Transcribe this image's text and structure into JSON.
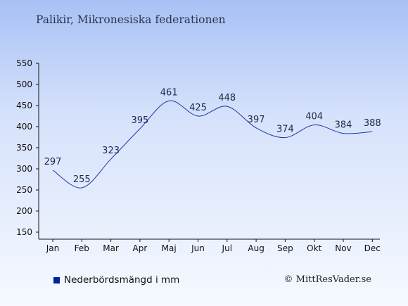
{
  "chart_data": {
    "type": "line",
    "title": "Palikir, Mikronesiska federationen",
    "categories": [
      "Jan",
      "Feb",
      "Mar",
      "Apr",
      "Maj",
      "Jun",
      "Jul",
      "Aug",
      "Sep",
      "Okt",
      "Nov",
      "Dec"
    ],
    "series": [
      {
        "name": "Nederbördsmängd i mm",
        "values": [
          297,
          255,
          323,
          395,
          461,
          425,
          448,
          397,
          374,
          404,
          384,
          388
        ],
        "color": "#2233aa"
      }
    ],
    "y_ticks": [
      150,
      200,
      250,
      300,
      350,
      400,
      450,
      500,
      550
    ],
    "ylim": [
      150,
      550
    ],
    "grid": false,
    "legend_position": "bottom-left"
  },
  "legend": {
    "label": "Nederbördsmängd i mm",
    "color": "#00209c"
  },
  "footer": {
    "copyright": "© MittResVader.se"
  }
}
